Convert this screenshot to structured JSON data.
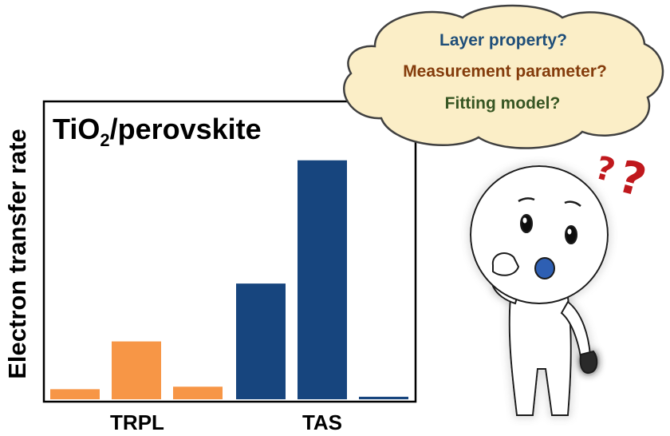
{
  "chart_data": {
    "type": "bar",
    "title": {
      "main": "TiO",
      "subscript": "2",
      "rest": "/perovskite"
    },
    "ylabel": "Electron transfer rate",
    "xlabel": "",
    "ylim": [
      0,
      100
    ],
    "groups": [
      {
        "label": "TRPL",
        "color": "#f79646",
        "values": [
          4,
          23,
          5
        ]
      },
      {
        "label": "TAS",
        "color": "#17457e",
        "values": [
          46,
          95,
          1
        ]
      }
    ],
    "grid": false,
    "legend": "none"
  },
  "cloud": {
    "questions": [
      {
        "text": "Layer property?",
        "color": "#1f4e79"
      },
      {
        "text": "Measurement parameter?",
        "color": "#843c0c"
      },
      {
        "text": "Fitting model?",
        "color": "#375623"
      }
    ],
    "fill": "#fbeec7",
    "outline": "#404040"
  },
  "question_marks": [
    "?",
    "?"
  ],
  "character": {
    "icon": "confused-stick-figure-icon",
    "glow": "#6fa8ff"
  }
}
